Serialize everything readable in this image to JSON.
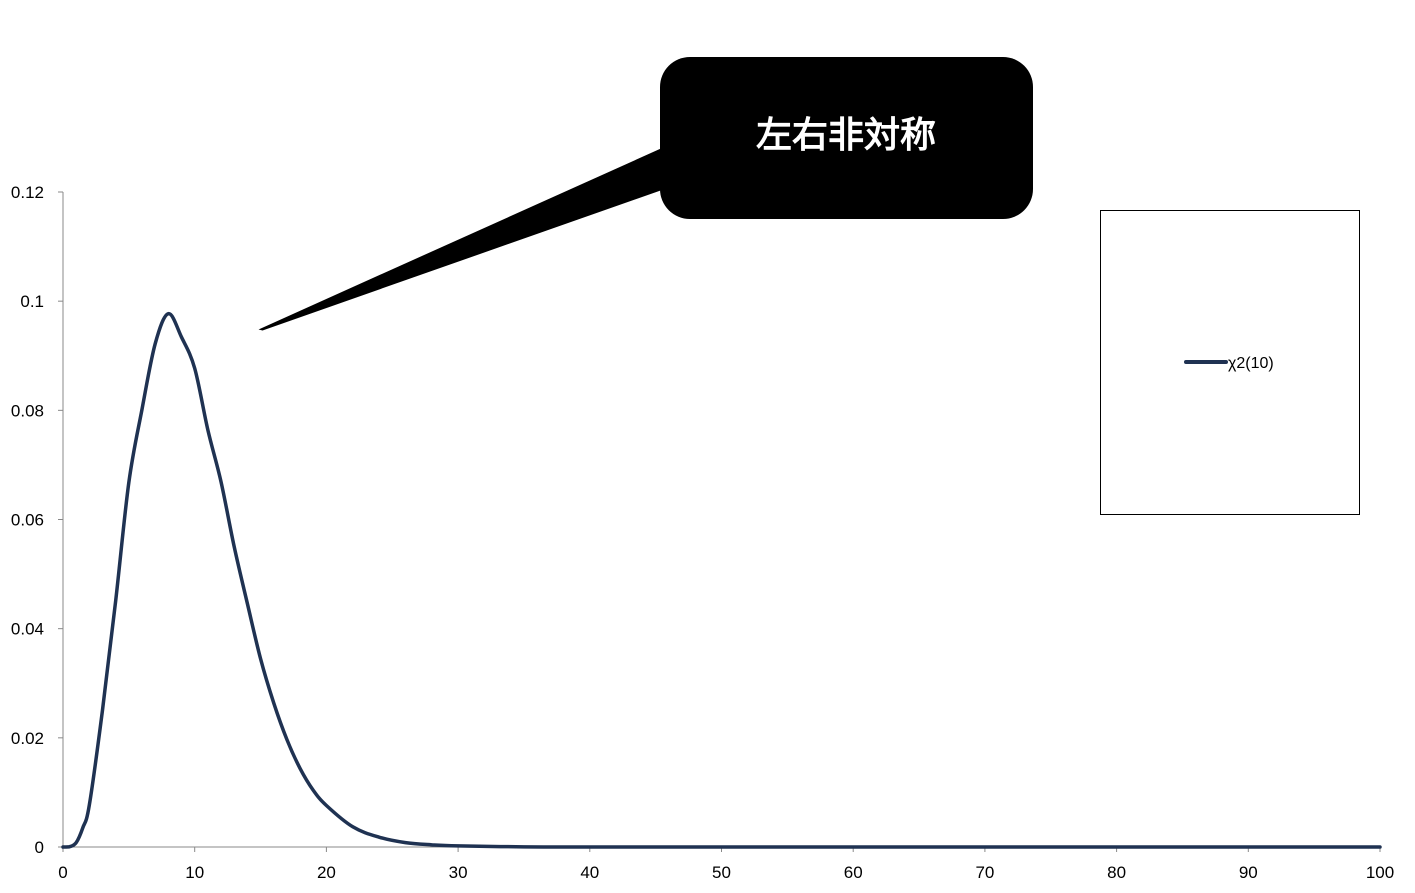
{
  "chart_data": {
    "type": "line",
    "title": "",
    "xlabel": "",
    "ylabel": "",
    "xlim": [
      0,
      100
    ],
    "ylim": [
      0,
      0.12
    ],
    "x_ticks": [
      0,
      10,
      20,
      30,
      40,
      50,
      60,
      70,
      80,
      90,
      100
    ],
    "y_ticks": [
      0,
      0.02,
      0.04,
      0.06,
      0.08,
      0.1,
      0.12
    ],
    "x_tick_labels": [
      "0",
      "10",
      "20",
      "30",
      "40",
      "50",
      "60",
      "70",
      "80",
      "90",
      "100"
    ],
    "y_tick_labels": [
      "0",
      "0.02",
      "0.04",
      "0.06",
      "0.08",
      "0.1",
      "0.12"
    ],
    "grid": false,
    "legend": {
      "placement": "right",
      "entries": [
        "χ2(10)"
      ]
    },
    "series": [
      {
        "name": "χ2(10)",
        "color": "#1f3252",
        "x": [
          0,
          0.5,
          1,
          1.5,
          2,
          3,
          4,
          5,
          6,
          7,
          8,
          9,
          10,
          11,
          12,
          13,
          14,
          15,
          16,
          17,
          18,
          19,
          20,
          22,
          24,
          26,
          28,
          30,
          35,
          40,
          50,
          60,
          70,
          80,
          90,
          100
        ],
        "y": [
          0,
          5e-05,
          0.0008,
          0.0035,
          0.0077,
          0.0251,
          0.0451,
          0.0668,
          0.0802,
          0.0922,
          0.0977,
          0.0934,
          0.0877,
          0.0764,
          0.0669,
          0.055,
          0.0446,
          0.0345,
          0.0264,
          0.0197,
          0.0144,
          0.0104,
          0.0076,
          0.0037,
          0.0018,
          0.0008,
          0.0004,
          0.0002,
          3e-05,
          4e-06,
          0,
          0,
          0,
          0,
          0,
          0
        ]
      }
    ],
    "annotations": [
      {
        "text": "左右非対称",
        "points_to": {
          "x": 15,
          "y": 0.095
        }
      }
    ]
  }
}
